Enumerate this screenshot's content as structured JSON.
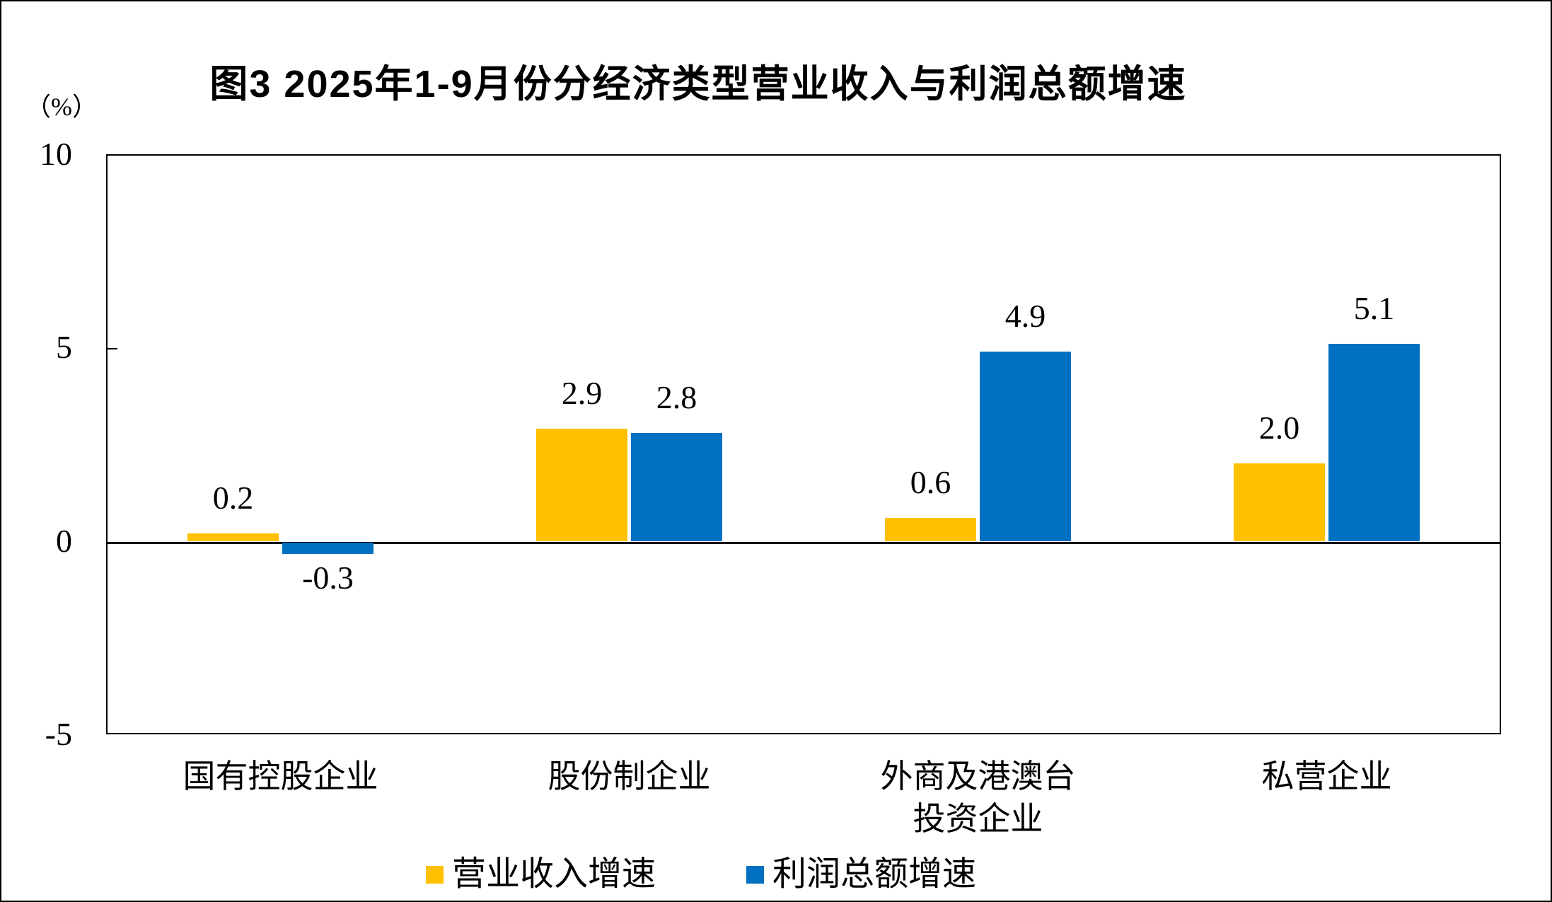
{
  "figure": {
    "title": "图3 2025年1-9月份分经济类型营业收入与利润总额增速",
    "unit_label": "（%）"
  },
  "chart_data": {
    "type": "bar",
    "title": "图3 2025年1-9月份分经济类型营业收入与利润总额增速",
    "ylabel": "（%）",
    "ylim": [
      -5,
      10
    ],
    "yticks": [
      10,
      5,
      0,
      -5
    ],
    "grid": false,
    "legend_position": "bottom",
    "categories": [
      {
        "lines": [
          "国有控股企业"
        ]
      },
      {
        "lines": [
          "股份制企业"
        ]
      },
      {
        "lines": [
          "外商及港澳台",
          "投资企业"
        ]
      },
      {
        "lines": [
          "私营企业"
        ]
      }
    ],
    "series": [
      {
        "name": "营业收入增速",
        "color": "#FFC000",
        "values": [
          0.2,
          2.9,
          0.6,
          2.0
        ]
      },
      {
        "name": "利润总额增速",
        "color": "#0070C0",
        "values": [
          -0.3,
          2.8,
          4.9,
          5.1
        ]
      }
    ],
    "bar_value_labels": [
      [
        "0.2",
        "2.9",
        "0.6",
        "2.0"
      ],
      [
        "-0.3",
        "2.8",
        "4.9",
        "5.1"
      ]
    ]
  },
  "colors": {
    "axis": "#000000",
    "background": "#FFFFFF",
    "text": "#000000"
  }
}
